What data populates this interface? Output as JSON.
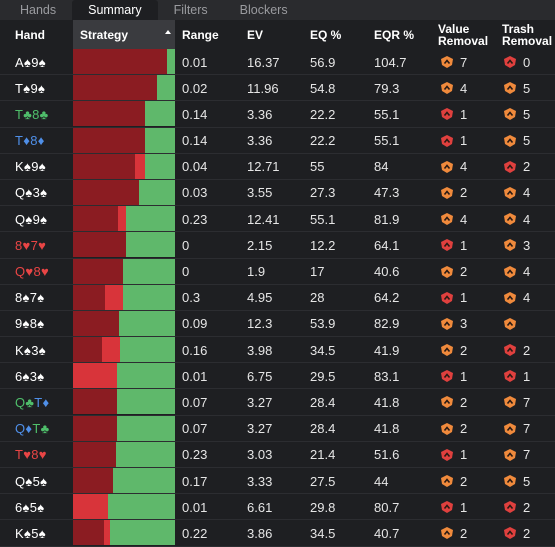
{
  "tabs": [
    {
      "label": "Hands",
      "active": false
    },
    {
      "label": "Summary",
      "active": true
    },
    {
      "label": "Filters",
      "active": false
    },
    {
      "label": "Blockers",
      "active": false
    }
  ],
  "columns": {
    "hand": "Hand",
    "strategy": "Strategy",
    "range": "Range",
    "ev": "EV",
    "eq": "EQ %",
    "eqr": "EQR %",
    "value_removal": [
      "Value",
      "Removal"
    ],
    "trash_removal": [
      "Trash",
      "Removal"
    ]
  },
  "colors": {
    "dark_red": "#8b1c22",
    "bright_red": "#d8343a",
    "green": "#5fb86b",
    "badge_orange": "#f08a3c",
    "badge_red": "#e0403e",
    "suit_black": "#ffffff",
    "suit_hearts": "#e94545",
    "suit_diamonds": "#4f8fe8",
    "suit_clubs": "#4fbf6b"
  },
  "rows": [
    {
      "hand": [
        {
          "t": "A♠",
          "c": "w"
        },
        {
          "t": "9♠",
          "c": "w"
        }
      ],
      "strategy": [
        0.92,
        0.0,
        0.08
      ],
      "range": "0.01",
      "ev": "16.37",
      "eq": "56.9",
      "eqr": "104.7",
      "vr": {
        "v": "7",
        "color": "orange"
      },
      "tr": {
        "v": "0",
        "color": "red"
      }
    },
    {
      "hand": [
        {
          "t": "T♠",
          "c": "w"
        },
        {
          "t": "9♠",
          "c": "w"
        }
      ],
      "strategy": [
        0.82,
        0.0,
        0.18
      ],
      "range": "0.02",
      "ev": "11.96",
      "eq": "54.8",
      "eqr": "79.3",
      "vr": {
        "v": "4",
        "color": "orange"
      },
      "tr": {
        "v": "5",
        "color": "orange"
      }
    },
    {
      "hand": [
        {
          "t": "T♣",
          "c": "g"
        },
        {
          "t": "8♣",
          "c": "g"
        }
      ],
      "strategy": [
        0.71,
        0.0,
        0.29
      ],
      "range": "0.14",
      "ev": "3.36",
      "eq": "22.2",
      "eqr": "55.1",
      "vr": {
        "v": "1",
        "color": "red"
      },
      "tr": {
        "v": "5",
        "color": "orange"
      }
    },
    {
      "hand": [
        {
          "t": "T♦",
          "c": "b"
        },
        {
          "t": "8♦",
          "c": "b"
        }
      ],
      "strategy": [
        0.71,
        0.0,
        0.29
      ],
      "range": "0.14",
      "ev": "3.36",
      "eq": "22.2",
      "eqr": "55.1",
      "vr": {
        "v": "1",
        "color": "red"
      },
      "tr": {
        "v": "5",
        "color": "orange"
      }
    },
    {
      "hand": [
        {
          "t": "K♠",
          "c": "w"
        },
        {
          "t": "9♠",
          "c": "w"
        }
      ],
      "strategy": [
        0.61,
        0.1,
        0.29
      ],
      "range": "0.04",
      "ev": "12.71",
      "eq": "55",
      "eqr": "84",
      "vr": {
        "v": "4",
        "color": "orange"
      },
      "tr": {
        "v": "2",
        "color": "red"
      }
    },
    {
      "hand": [
        {
          "t": "Q♠",
          "c": "w"
        },
        {
          "t": "3♠",
          "c": "w"
        }
      ],
      "strategy": [
        0.65,
        0.0,
        0.35
      ],
      "range": "0.03",
      "ev": "3.55",
      "eq": "27.3",
      "eqr": "47.3",
      "vr": {
        "v": "2",
        "color": "orange"
      },
      "tr": {
        "v": "4",
        "color": "orange"
      }
    },
    {
      "hand": [
        {
          "t": "Q♠",
          "c": "w"
        },
        {
          "t": "9♠",
          "c": "w"
        }
      ],
      "strategy": [
        0.44,
        0.08,
        0.48
      ],
      "range": "0.23",
      "ev": "12.41",
      "eq": "55.1",
      "eqr": "81.9",
      "vr": {
        "v": "4",
        "color": "orange"
      },
      "tr": {
        "v": "4",
        "color": "orange"
      }
    },
    {
      "hand": [
        {
          "t": "8♥",
          "c": "r"
        },
        {
          "t": "7♥",
          "c": "r"
        }
      ],
      "strategy": [
        0.52,
        0.0,
        0.48
      ],
      "range": "0",
      "ev": "2.15",
      "eq": "12.2",
      "eqr": "64.1",
      "vr": {
        "v": "1",
        "color": "red"
      },
      "tr": {
        "v": "3",
        "color": "orange"
      }
    },
    {
      "hand": [
        {
          "t": "Q♥",
          "c": "r"
        },
        {
          "t": "8♥",
          "c": "r"
        }
      ],
      "strategy": [
        0.49,
        0.0,
        0.51
      ],
      "range": "0",
      "ev": "1.9",
      "eq": "17",
      "eqr": "40.6",
      "vr": {
        "v": "2",
        "color": "orange"
      },
      "tr": {
        "v": "4",
        "color": "orange"
      }
    },
    {
      "hand": [
        {
          "t": "8♠",
          "c": "w"
        },
        {
          "t": "7♠",
          "c": "w"
        }
      ],
      "strategy": [
        0.31,
        0.18,
        0.51
      ],
      "range": "0.3",
      "ev": "4.95",
      "eq": "28",
      "eqr": "64.2",
      "vr": {
        "v": "1",
        "color": "red"
      },
      "tr": {
        "v": "4",
        "color": "orange"
      }
    },
    {
      "hand": [
        {
          "t": "9♠",
          "c": "w"
        },
        {
          "t": "8♠",
          "c": "w"
        }
      ],
      "strategy": [
        0.45,
        0.0,
        0.55
      ],
      "range": "0.09",
      "ev": "12.3",
      "eq": "53.9",
      "eqr": "82.9",
      "vr": {
        "v": "3",
        "color": "orange"
      },
      "tr": {
        "v": "",
        "color": "orange"
      }
    },
    {
      "hand": [
        {
          "t": "K♠",
          "c": "w"
        },
        {
          "t": "3♠",
          "c": "w"
        }
      ],
      "strategy": [
        0.28,
        0.18,
        0.54
      ],
      "range": "0.16",
      "ev": "3.98",
      "eq": "34.5",
      "eqr": "41.9",
      "vr": {
        "v": "2",
        "color": "orange"
      },
      "tr": {
        "v": "2",
        "color": "red"
      }
    },
    {
      "hand": [
        {
          "t": "6♠",
          "c": "w"
        },
        {
          "t": "3♠",
          "c": "w"
        }
      ],
      "strategy": [
        0.0,
        0.43,
        0.57
      ],
      "range": "0.01",
      "ev": "6.75",
      "eq": "29.5",
      "eqr": "83.1",
      "vr": {
        "v": "1",
        "color": "red"
      },
      "tr": {
        "v": "1",
        "color": "red"
      }
    },
    {
      "hand": [
        {
          "t": "Q♣",
          "c": "g"
        },
        {
          "t": "T♦",
          "c": "b"
        }
      ],
      "strategy": [
        0.43,
        0.0,
        0.57
      ],
      "range": "0.07",
      "ev": "3.27",
      "eq": "28.4",
      "eqr": "41.8",
      "vr": {
        "v": "2",
        "color": "orange"
      },
      "tr": {
        "v": "7",
        "color": "orange"
      }
    },
    {
      "hand": [
        {
          "t": "Q♦",
          "c": "b"
        },
        {
          "t": "T♣",
          "c": "g"
        }
      ],
      "strategy": [
        0.43,
        0.0,
        0.57
      ],
      "range": "0.07",
      "ev": "3.27",
      "eq": "28.4",
      "eqr": "41.8",
      "vr": {
        "v": "2",
        "color": "orange"
      },
      "tr": {
        "v": "7",
        "color": "orange"
      }
    },
    {
      "hand": [
        {
          "t": "T♥",
          "c": "r"
        },
        {
          "t": "8♥",
          "c": "r"
        }
      ],
      "strategy": [
        0.42,
        0.0,
        0.58
      ],
      "range": "0.23",
      "ev": "3.03",
      "eq": "21.4",
      "eqr": "51.6",
      "vr": {
        "v": "1",
        "color": "red"
      },
      "tr": {
        "v": "7",
        "color": "orange"
      }
    },
    {
      "hand": [
        {
          "t": "Q♠",
          "c": "w"
        },
        {
          "t": "5♠",
          "c": "w"
        }
      ],
      "strategy": [
        0.39,
        0.0,
        0.61
      ],
      "range": "0.17",
      "ev": "3.33",
      "eq": "27.5",
      "eqr": "44",
      "vr": {
        "v": "2",
        "color": "orange"
      },
      "tr": {
        "v": "5",
        "color": "orange"
      }
    },
    {
      "hand": [
        {
          "t": "6♠",
          "c": "w"
        },
        {
          "t": "5♠",
          "c": "w"
        }
      ],
      "strategy": [
        0.0,
        0.34,
        0.66
      ],
      "range": "0.01",
      "ev": "6.61",
      "eq": "29.8",
      "eqr": "80.7",
      "vr": {
        "v": "1",
        "color": "red"
      },
      "tr": {
        "v": "2",
        "color": "red"
      }
    },
    {
      "hand": [
        {
          "t": "K♠",
          "c": "w"
        },
        {
          "t": "5♠",
          "c": "w"
        }
      ],
      "strategy": [
        0.3,
        0.06,
        0.64
      ],
      "range": "0.22",
      "ev": "3.86",
      "eq": "34.5",
      "eqr": "40.7",
      "vr": {
        "v": "2",
        "color": "orange"
      },
      "tr": {
        "v": "2",
        "color": "red"
      }
    }
  ]
}
